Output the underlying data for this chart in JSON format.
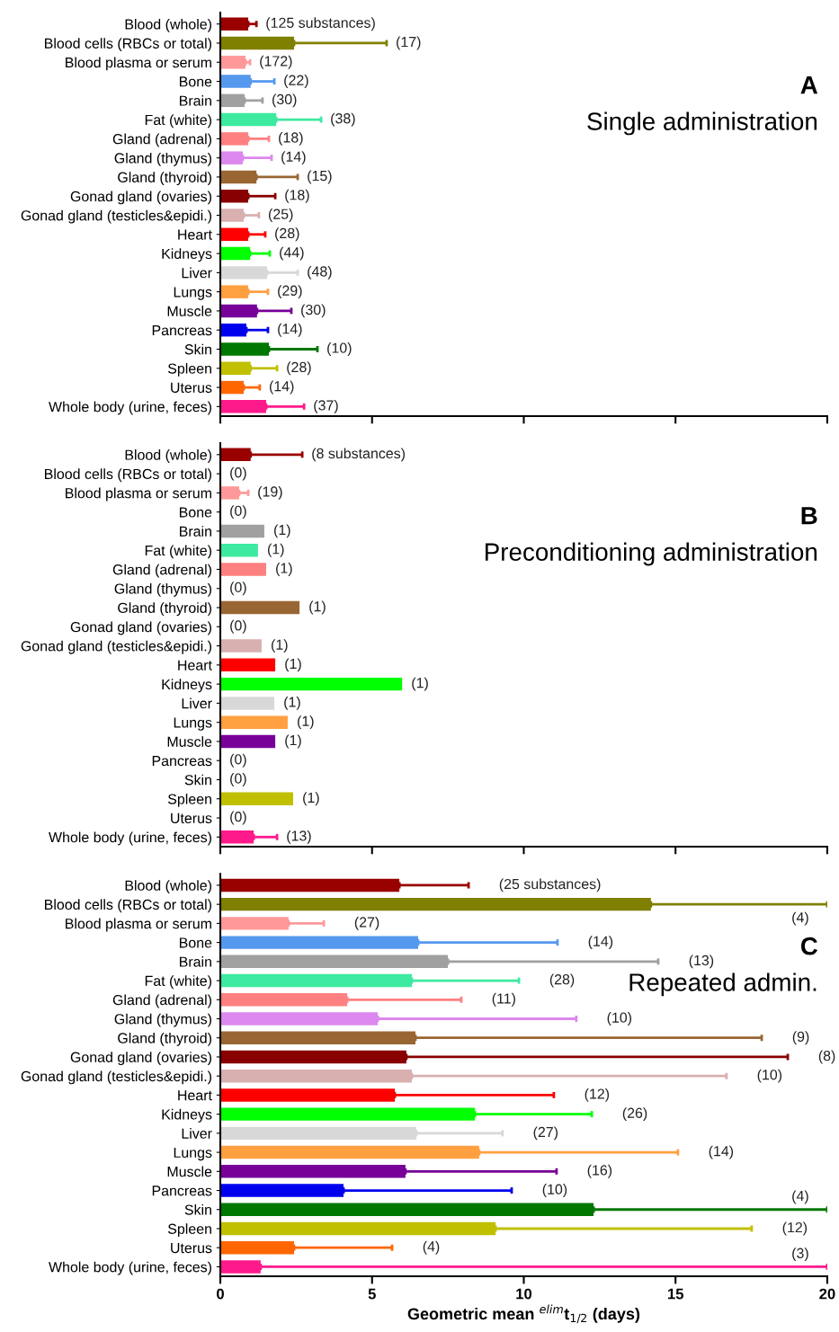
{
  "chart_data": [
    {
      "type": "bar",
      "orientation": "horizontal",
      "title": "Single administration",
      "annotations": [
        "A",
        "(125 substances)",
        "(17)",
        "(172)",
        "(22)",
        "(30)",
        "(38)",
        "(18)",
        "(14)",
        "(15)",
        "(18)",
        "(25)",
        "(28)",
        "(44)",
        "(48)",
        "(29)",
        "(30)",
        "(14)",
        "(10)",
        "(28)",
        "(14)",
        "(37)"
      ],
      "categories": [
        "Blood (whole)",
        "Blood cells (RBCs or total)",
        "Blood plasma or serum",
        "Bone",
        "Brain",
        "Fat (white)",
        "Gland (adrenal)",
        "Gland (thymus)",
        "Gland (thyroid)",
        "Gonad gland (ovaries)",
        "Gonad gland (testicles&epidi.)",
        "Heart",
        "Kidneys",
        "Liver",
        "Lungs",
        "Muscle",
        "Pancreas",
        "Skin",
        "Spleen",
        "Uterus",
        "Whole body (urine, feces)"
      ],
      "colors": [
        "#990000",
        "#808000",
        "#ff9999",
        "#5599ee",
        "#a0a0a0",
        "#3deaa0",
        "#ff8080",
        "#dd88ee",
        "#996633",
        "#880000",
        "#d8b0b0",
        "#ff0000",
        "#00ff00",
        "#d8d8d8",
        "#ffa040",
        "#770099",
        "#0000ee",
        "#007700",
        "#c0c000",
        "#ff6600",
        "#ff1a8c"
      ],
      "values": [
        0.92,
        2.43,
        0.83,
        1.0,
        0.8,
        1.84,
        0.92,
        0.74,
        1.19,
        0.92,
        0.77,
        0.92,
        0.98,
        1.54,
        0.92,
        1.21,
        0.86,
        1.6,
        1.0,
        0.77,
        1.51
      ],
      "errors": [
        [
          0.92,
          1.19
        ],
        [
          2.43,
          5.48
        ],
        [
          0.83,
          0.98
        ],
        [
          1.0,
          1.78
        ],
        [
          0.8,
          1.39
        ],
        [
          1.84,
          3.32
        ],
        [
          0.92,
          1.6
        ],
        [
          0.74,
          1.69
        ],
        [
          1.19,
          2.55
        ],
        [
          0.92,
          1.81
        ],
        [
          0.77,
          1.27
        ],
        [
          0.92,
          1.48
        ],
        [
          0.98,
          1.63
        ],
        [
          1.54,
          2.55
        ],
        [
          0.92,
          1.57
        ],
        [
          1.21,
          2.34
        ],
        [
          0.86,
          1.57
        ],
        [
          1.6,
          3.2
        ],
        [
          1.0,
          1.87
        ],
        [
          0.77,
          1.3
        ],
        [
          1.51,
          2.76
        ]
      ],
      "xlim": [
        0,
        20
      ],
      "xticks": [
        0,
        5,
        10,
        15,
        20
      ],
      "tick_labels": "y",
      "grid": false,
      "legend": false
    },
    {
      "type": "bar",
      "orientation": "horizontal",
      "title": "Preconditioning administration",
      "annotations": [
        "B",
        "(8 substances)",
        "(0)",
        "(19)",
        "(0)",
        "(1)",
        "(1)",
        "(1)",
        "(0)",
        "(1)",
        "(0)",
        "(1)",
        "(1)",
        "(1)",
        "(1)",
        "(1)",
        "(1)",
        "(0)",
        "(0)",
        "(1)",
        "(0)",
        "(13)"
      ],
      "categories": [
        "Blood (whole)",
        "Blood cells (RBCs or total)",
        "Blood plasma or serum",
        "Bone",
        "Brain",
        "Fat (white)",
        "Gland (adrenal)",
        "Gland (thymus)",
        "Gland (thyroid)",
        "Gonad gland (ovaries)",
        "Gonad gland (testicles&epidi.)",
        "Heart",
        "Kidneys",
        "Liver",
        "Lungs",
        "Muscle",
        "Pancreas",
        "Skin",
        "Spleen",
        "Uterus",
        "Whole body (urine, feces)"
      ],
      "colors": [
        "#990000",
        "#808000",
        "#ff9999",
        "#5599ee",
        "#a0a0a0",
        "#3deaa0",
        "#ff8080",
        "#dd88ee",
        "#996633",
        "#880000",
        "#d8b0b0",
        "#ff0000",
        "#00ff00",
        "#d8d8d8",
        "#ffa040",
        "#770099",
        "#0000ee",
        "#007700",
        "#c0c000",
        "#ff6600",
        "#ff1a8c"
      ],
      "values": [
        1.0,
        null,
        0.62,
        null,
        1.45,
        1.24,
        1.51,
        null,
        2.61,
        null,
        1.36,
        1.81,
        5.99,
        1.78,
        2.22,
        1.81,
        null,
        null,
        2.4,
        null,
        1.1
      ],
      "errors": [
        [
          1.0,
          2.7
        ],
        null,
        [
          0.62,
          0.92
        ],
        null,
        null,
        null,
        null,
        null,
        null,
        null,
        null,
        null,
        null,
        null,
        null,
        null,
        null,
        null,
        null,
        null,
        [
          1.1,
          1.87
        ]
      ],
      "xlim": [
        0,
        20
      ],
      "xticks": [
        0,
        5,
        10,
        15,
        20
      ],
      "tick_labels": "y",
      "grid": false,
      "legend": false
    },
    {
      "type": "bar",
      "orientation": "horizontal",
      "title": "Repeated admin.",
      "xlabel": "Geometric mean $^{elim}$t$_{1/2}$ (days)",
      "annotations": [
        "C",
        "(25 substances)",
        "(4)",
        "(27)",
        "(14)",
        "(13)",
        "(28)",
        "(11)",
        "(10)",
        "(9)",
        "(8)",
        "(10)",
        "(12)",
        "(26)",
        "(27)",
        "(14)",
        "(16)",
        "(10)",
        "(4)",
        "(12)",
        "(4)",
        "(3)"
      ],
      "categories": [
        "Blood (whole)",
        "Blood cells (RBCs or total)",
        "Blood plasma or serum",
        "Bone",
        "Brain",
        "Fat (white)",
        "Gland (adrenal)",
        "Gland (thymus)",
        "Gland (thyroid)",
        "Gonad gland (ovaries)",
        "Gonad gland (testicles&epidi.)",
        "Heart",
        "Kidneys",
        "Liver",
        "Lungs",
        "Muscle",
        "Pancreas",
        "Skin",
        "Spleen",
        "Uterus",
        "Whole body (urine, feces)"
      ],
      "colors": [
        "#990000",
        "#808000",
        "#ff9999",
        "#5599ee",
        "#a0a0a0",
        "#3deaa0",
        "#ff8080",
        "#dd88ee",
        "#996633",
        "#880000",
        "#d8b0b0",
        "#ff0000",
        "#00ff00",
        "#d8d8d8",
        "#ffa040",
        "#770099",
        "#0000ee",
        "#007700",
        "#c0c000",
        "#ff6600",
        "#ff1a8c"
      ],
      "values": [
        5.9,
        14.19,
        2.25,
        6.52,
        7.5,
        6.31,
        4.18,
        5.19,
        6.43,
        6.13,
        6.31,
        5.75,
        8.39,
        6.46,
        8.53,
        6.1,
        4.06,
        12.3,
        9.07,
        2.43,
        1.33
      ],
      "errors": [
        [
          5.9,
          8.18
        ],
        [
          14.19,
          20
        ],
        [
          2.25,
          3.41
        ],
        [
          6.52,
          11.11
        ],
        [
          7.5,
          14.43
        ],
        [
          6.31,
          9.84
        ],
        [
          4.18,
          7.94
        ],
        [
          5.19,
          11.73
        ],
        [
          6.43,
          17.84
        ],
        [
          6.13,
          18.7
        ],
        [
          6.31,
          16.68
        ],
        [
          5.75,
          10.99
        ],
        [
          8.39,
          12.24
        ],
        [
          6.46,
          9.3
        ],
        [
          8.53,
          15.08
        ],
        [
          6.1,
          11.08
        ],
        [
          4.06,
          9.6
        ],
        [
          12.3,
          20
        ],
        [
          9.07,
          17.51
        ],
        [
          2.43,
          5.66
        ],
        [
          1.33,
          20
        ]
      ],
      "xlim": [
        0,
        20
      ],
      "xticks": [
        0,
        5,
        10,
        15,
        20
      ],
      "grid": false,
      "legend": false
    }
  ]
}
